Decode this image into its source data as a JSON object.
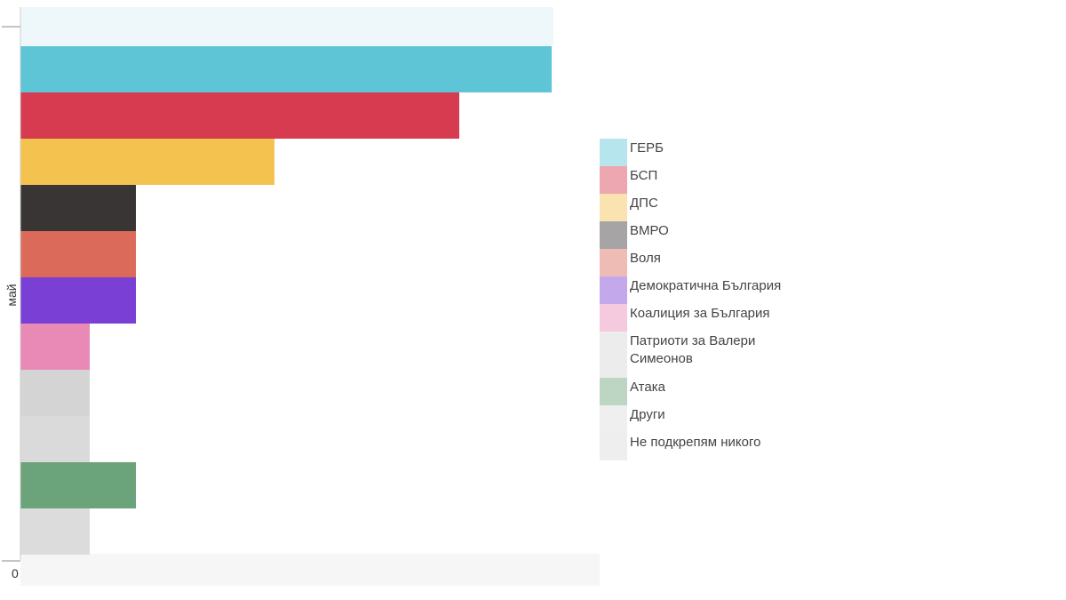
{
  "chart_data": {
    "type": "bar",
    "orientation": "horizontal",
    "xlabel": "",
    "ylabel": "май",
    "x_tick_labels": [
      "0"
    ],
    "legend_position": "right",
    "series": [
      {
        "name": "ГЕРБ",
        "color": "#5ec5d6",
        "row": 1,
        "value": 11.5
      },
      {
        "name": "БСП",
        "color": "#d63b50",
        "row": 2,
        "value": 9.5
      },
      {
        "name": "ДПС",
        "color": "#f4c24f",
        "row": 3,
        "value": 5.5
      },
      {
        "name": "ВМРО",
        "color": "#3a3535",
        "row": 4,
        "value": 2.5
      },
      {
        "name": "Воля",
        "color": "#dc6a5a",
        "row": 5,
        "value": 2.5
      },
      {
        "name": "Демократична България",
        "color": "#7a3fd4",
        "row": 6,
        "value": 2.5
      },
      {
        "name": "Коалиция за България",
        "color": "#e98ab6",
        "row": 7,
        "value": 1.5
      },
      {
        "name": "Патриоти за Валери Симеонов",
        "color": "#d4d4d4",
        "row": 8,
        "value": 1.5
      },
      {
        "name": "Атака",
        "color": "#6ba37a",
        "row": 10,
        "value": 2.5
      },
      {
        "name": "Други",
        "color": "#dcdcdc",
        "row": 11,
        "value": 1.5
      },
      {
        "name": "Не подкрепям никого",
        "color": "#dadada",
        "row": 9,
        "value": 1.5
      }
    ]
  }
}
